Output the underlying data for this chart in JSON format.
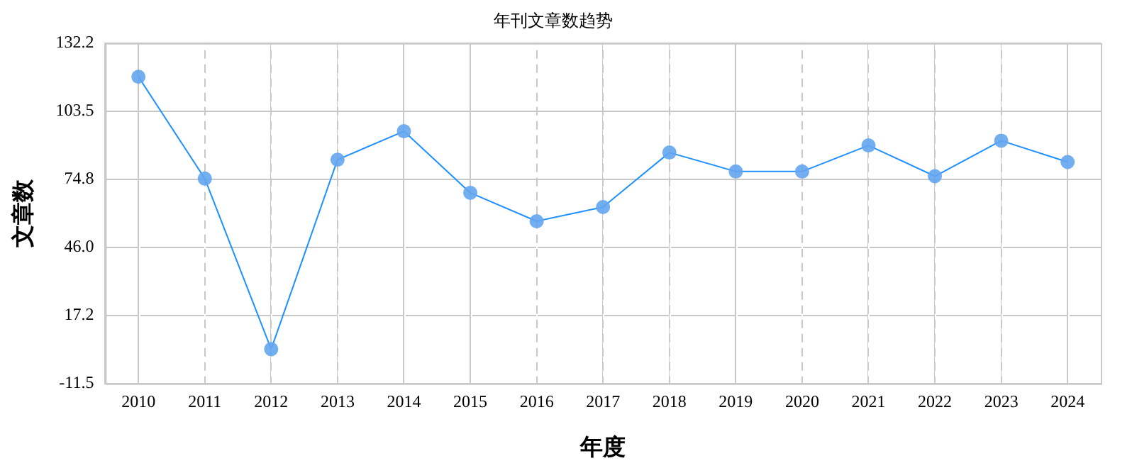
{
  "chart_data": {
    "type": "line",
    "title": "年刊文章数趋势",
    "xlabel": "年度",
    "ylabel": "文章数",
    "categories": [
      "2010",
      "2011",
      "2012",
      "2013",
      "2014",
      "2015",
      "2016",
      "2017",
      "2018",
      "2019",
      "2020",
      "2021",
      "2022",
      "2023",
      "2024"
    ],
    "series": [
      {
        "color": "#1e90ff",
        "values": [
          118,
          75,
          3,
          83,
          95,
          69,
          57,
          63,
          86,
          78,
          78,
          89,
          76,
          91,
          82
        ]
      }
    ],
    "ylim": [
      -11.5,
      132.2
    ],
    "yticks": [
      {
        "value": -11.5,
        "label": "-11.5"
      },
      {
        "value": 17.2,
        "label": "17.2"
      },
      {
        "value": 46.0,
        "label": "46.0"
      },
      {
        "value": 74.8,
        "label": "74.8"
      },
      {
        "value": 103.5,
        "label": "103.5"
      },
      {
        "value": 132.2,
        "label": "132.2"
      }
    ],
    "grid": true,
    "legend": false,
    "marker": "circle",
    "line_style": "solid"
  }
}
